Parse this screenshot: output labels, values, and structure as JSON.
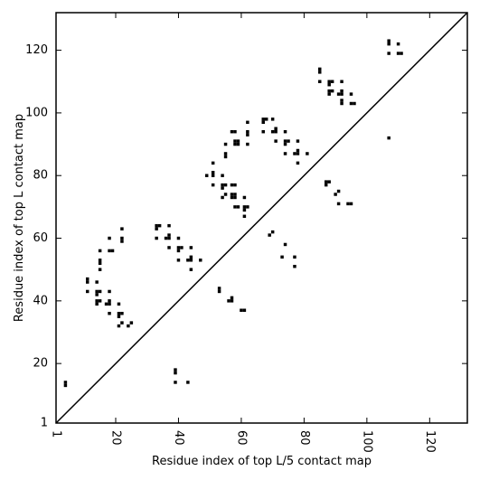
{
  "chart_data": {
    "type": "scatter",
    "title": "",
    "xlabel": "Residue index of top L/5 contact map",
    "ylabel": "Residue index of top L contact map",
    "xlim": [
      1,
      132
    ],
    "ylim": [
      1,
      132
    ],
    "xticks": [
      1,
      20,
      40,
      60,
      80,
      100,
      120
    ],
    "yticks": [
      1,
      20,
      40,
      60,
      80,
      100,
      120
    ],
    "xtick_labels": [
      "1",
      "20",
      "40",
      "60",
      "80",
      "100",
      "120"
    ],
    "ytick_labels": [
      "1",
      "20",
      "40",
      "60",
      "80",
      "100",
      "120"
    ],
    "diagonal": [
      [
        1,
        1
      ],
      [
        132,
        132
      ]
    ],
    "grid": false,
    "marker_color": "#000000",
    "series": [
      {
        "points": [
          [
            4,
            14
          ],
          [
            4,
            13
          ],
          [
            11,
            47
          ],
          [
            11,
            46
          ],
          [
            11,
            43
          ],
          [
            14,
            46
          ],
          [
            14,
            43
          ],
          [
            14,
            42
          ],
          [
            14,
            40
          ],
          [
            14,
            39
          ],
          [
            15,
            43
          ],
          [
            15,
            40
          ],
          [
            15,
            56
          ],
          [
            15,
            53
          ],
          [
            15,
            52
          ],
          [
            15,
            50
          ],
          [
            18,
            60
          ],
          [
            18,
            56
          ],
          [
            19,
            56
          ],
          [
            18,
            43
          ],
          [
            18,
            40
          ],
          [
            18,
            39
          ],
          [
            17,
            39
          ],
          [
            18,
            36
          ],
          [
            21,
            39
          ],
          [
            21,
            36
          ],
          [
            21,
            35
          ],
          [
            22,
            36
          ],
          [
            21,
            32
          ],
          [
            22,
            33
          ],
          [
            24,
            32
          ],
          [
            25,
            33
          ],
          [
            22,
            63
          ],
          [
            22,
            60
          ],
          [
            22,
            59
          ],
          [
            33,
            64
          ],
          [
            33,
            63
          ],
          [
            34,
            64
          ],
          [
            33,
            60
          ],
          [
            36,
            60
          ],
          [
            37,
            60
          ],
          [
            37,
            61
          ],
          [
            37,
            64
          ],
          [
            37,
            57
          ],
          [
            40,
            60
          ],
          [
            40,
            57
          ],
          [
            41,
            57
          ],
          [
            40,
            56
          ],
          [
            40,
            53
          ],
          [
            43,
            53
          ],
          [
            44,
            53
          ],
          [
            44,
            54
          ],
          [
            44,
            57
          ],
          [
            44,
            50
          ],
          [
            47,
            53
          ],
          [
            39,
            18
          ],
          [
            39,
            17
          ],
          [
            39,
            14
          ],
          [
            43,
            14
          ],
          [
            49,
            80
          ],
          [
            51,
            84
          ],
          [
            51,
            81
          ],
          [
            51,
            80
          ],
          [
            51,
            77
          ],
          [
            54,
            80
          ],
          [
            54,
            77
          ],
          [
            54,
            76
          ],
          [
            55,
            77
          ],
          [
            54,
            73
          ],
          [
            55,
            74
          ],
          [
            55,
            87
          ],
          [
            55,
            86
          ],
          [
            55,
            90
          ],
          [
            57,
            94
          ],
          [
            58,
            94
          ],
          [
            58,
            91
          ],
          [
            58,
            90
          ],
          [
            59,
            90
          ],
          [
            59,
            91
          ],
          [
            57,
            77
          ],
          [
            58,
            77
          ],
          [
            57,
            74
          ],
          [
            57,
            73
          ],
          [
            58,
            73
          ],
          [
            58,
            74
          ],
          [
            58,
            70
          ],
          [
            59,
            70
          ],
          [
            61,
            73
          ],
          [
            61,
            70
          ],
          [
            61,
            69
          ],
          [
            62,
            70
          ],
          [
            61,
            67
          ],
          [
            62,
            97
          ],
          [
            62,
            94
          ],
          [
            62,
            93
          ],
          [
            62,
            90
          ],
          [
            67,
            98
          ],
          [
            67,
            97
          ],
          [
            68,
            98
          ],
          [
            67,
            94
          ],
          [
            70,
            98
          ],
          [
            70,
            94
          ],
          [
            71,
            94
          ],
          [
            71,
            95
          ],
          [
            71,
            91
          ],
          [
            74,
            94
          ],
          [
            74,
            91
          ],
          [
            74,
            90
          ],
          [
            75,
            91
          ],
          [
            74,
            87
          ],
          [
            77,
            87
          ],
          [
            78,
            87
          ],
          [
            78,
            88
          ],
          [
            78,
            91
          ],
          [
            78,
            84
          ],
          [
            81,
            87
          ],
          [
            53,
            44
          ],
          [
            53,
            43
          ],
          [
            56,
            40
          ],
          [
            57,
            40
          ],
          [
            57,
            41
          ],
          [
            60,
            37
          ],
          [
            61,
            37
          ],
          [
            69,
            61
          ],
          [
            70,
            62
          ],
          [
            73,
            54
          ],
          [
            74,
            58
          ],
          [
            77,
            54
          ],
          [
            77,
            51
          ],
          [
            85,
            114
          ],
          [
            85,
            113
          ],
          [
            85,
            110
          ],
          [
            88,
            110
          ],
          [
            89,
            110
          ],
          [
            88,
            109
          ],
          [
            88,
            107
          ],
          [
            89,
            107
          ],
          [
            88,
            106
          ],
          [
            92,
            110
          ],
          [
            92,
            107
          ],
          [
            92,
            106
          ],
          [
            91,
            106
          ],
          [
            92,
            104
          ],
          [
            92,
            103
          ],
          [
            95,
            106
          ],
          [
            95,
            103
          ],
          [
            96,
            103
          ],
          [
            87,
            78
          ],
          [
            88,
            78
          ],
          [
            87,
            77
          ],
          [
            90,
            74
          ],
          [
            91,
            75
          ],
          [
            91,
            71
          ],
          [
            94,
            71
          ],
          [
            95,
            71
          ],
          [
            107,
            123
          ],
          [
            107,
            122
          ],
          [
            107,
            119
          ],
          [
            110,
            122
          ],
          [
            110,
            119
          ],
          [
            111,
            119
          ],
          [
            107,
            92
          ]
        ]
      }
    ]
  }
}
